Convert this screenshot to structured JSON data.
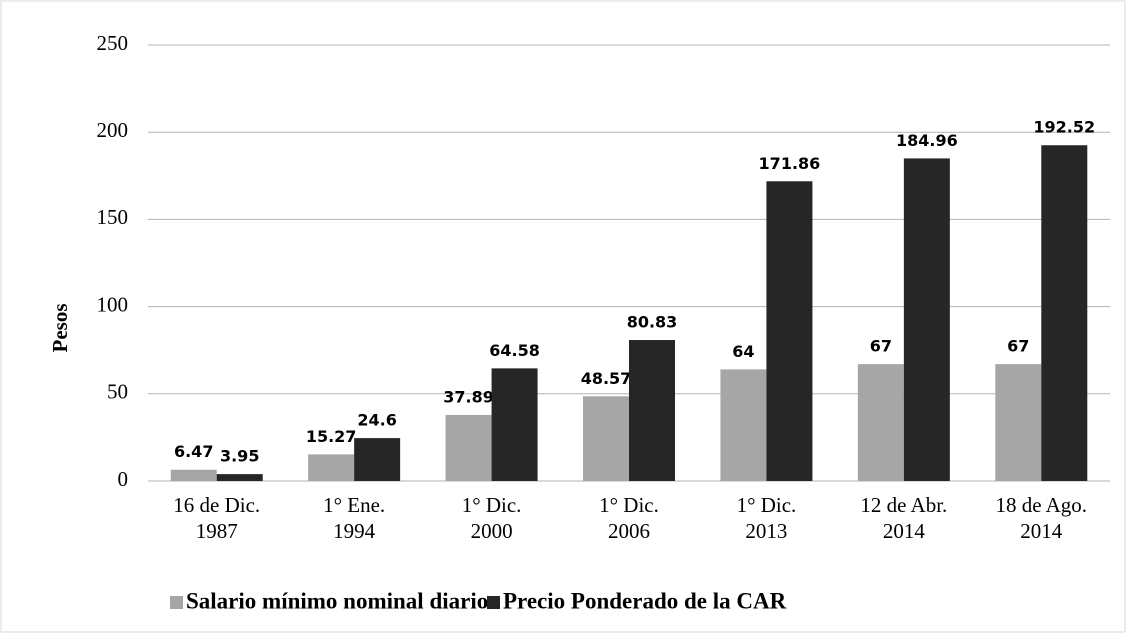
{
  "chart_data": {
    "type": "bar",
    "y_label": "Pesos",
    "categories": [
      [
        "16 de Dic.",
        "1987"
      ],
      [
        "1° Ene.",
        "1994"
      ],
      [
        "1° Dic.",
        "2000"
      ],
      [
        "1° Dic.",
        "2006"
      ],
      [
        "1° Dic.",
        "2013"
      ],
      [
        "12 de Abr.",
        "2014"
      ],
      [
        "18 de Ago.",
        "2014"
      ]
    ],
    "series": [
      {
        "name": "Salario mínimo nominal diario",
        "color": "#a6a6a6",
        "values": [
          6.47,
          15.27,
          37.89,
          48.57,
          64,
          67,
          67
        ]
      },
      {
        "name": "Precio Ponderado de la CAR",
        "color": "#262626",
        "values": [
          3.95,
          24.6,
          64.58,
          80.83,
          171.86,
          184.96,
          192.52
        ]
      }
    ],
    "ylim": [
      0,
      250
    ],
    "yticks": [
      0,
      50,
      100,
      150,
      200,
      250
    ],
    "grid": true,
    "legend": "bottom"
  }
}
